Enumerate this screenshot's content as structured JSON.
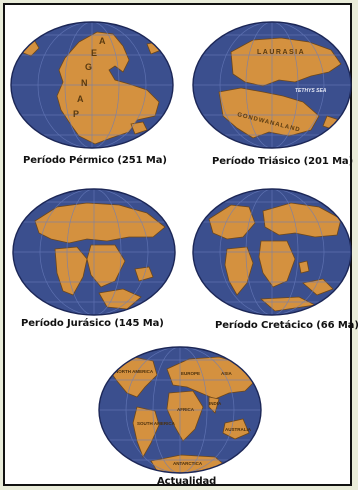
{
  "figure": {
    "panels": [
      {
        "caption": "Período Pérmico (251 Ma)",
        "map_labels": [
          "P",
          "A",
          "N",
          "G",
          "E",
          "A"
        ]
      },
      {
        "caption": "Período Triásico (201 Ma)",
        "map_labels": [
          "LAURASIA",
          "TETHYS SEA",
          "GONDWANALAND"
        ]
      },
      {
        "caption": "Período Jurásico (145 Ma)",
        "map_labels": []
      },
      {
        "caption": "Período Cretácico (66 Ma)",
        "map_labels": []
      },
      {
        "caption": "Actualidad",
        "map_labels": [
          "NORTH AMERICA",
          "EUROPE",
          "ASIA",
          "AFRICA",
          "SOUTH AMERICA",
          "INDIA",
          "AUSTRALIA",
          "ANTARCTICA"
        ]
      }
    ]
  },
  "colors": {
    "ocean": "#3b4f8e",
    "land": "#d4913f",
    "land_edge": "#6e4718",
    "grid": "#6a7dbd",
    "rim": "#1c2757"
  }
}
